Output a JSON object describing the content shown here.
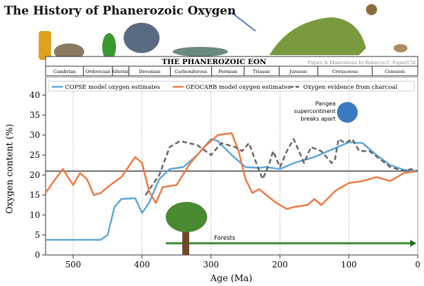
{
  "title": "The History of Phanerozoic Oxygen",
  "eon_label": "THE PHANEROZOIC EON",
  "credit": "Figure & Illustrations by Rebecca C. Payne/CSI",
  "periods": [
    {
      "name": "Cambrian",
      "start": 541,
      "end": 485
    },
    {
      "name": "Ordovician",
      "start": 485,
      "end": 443
    },
    {
      "name": "Silurian",
      "start": 443,
      "end": 419
    },
    {
      "name": "Devonian",
      "start": 419,
      "end": 359
    },
    {
      "name": "Carboniferous",
      "start": 359,
      "end": 299
    },
    {
      "name": "Permian",
      "start": 299,
      "end": 252
    },
    {
      "name": "Triassic",
      "start": 252,
      "end": 201
    },
    {
      "name": "Jurassic",
      "start": 201,
      "end": 145
    },
    {
      "name": "Cretaceous",
      "start": 145,
      "end": 66
    },
    {
      "name": "Cenozoic",
      "start": 66,
      "end": 0
    }
  ],
  "annotations": {
    "pangea": [
      "Pangea",
      "supercontinent",
      "breaks apart"
    ],
    "forests": "Forests"
  },
  "chart_data": {
    "type": "line",
    "xlabel": "Age (Ma)",
    "ylabel": "Oxygen content (%)",
    "xlim": [
      540,
      0
    ],
    "ylim": [
      0,
      40
    ],
    "xticks": [
      500,
      400,
      300,
      200,
      100,
      0
    ],
    "yticks": [
      0,
      5,
      10,
      15,
      20,
      25,
      30,
      35,
      40
    ],
    "reference_line": 21,
    "grid": "vertical dotted at 100 Ma intervals",
    "legend": "top",
    "series": [
      {
        "name": "COPSE model oxygen estimates",
        "color": "#5aa7da",
        "style": "solid",
        "x": [
          540,
          460,
          450,
          440,
          430,
          410,
          400,
          390,
          375,
          360,
          340,
          320,
          300,
          290,
          270,
          250,
          230,
          220,
          200,
          180,
          150,
          130,
          100,
          80,
          60,
          40,
          20,
          0
        ],
        "y": [
          3.8,
          3.8,
          5,
          12,
          14,
          14.2,
          10.5,
          13,
          19,
          21.5,
          22,
          25,
          29,
          28.5,
          25,
          22,
          21.8,
          22,
          21.5,
          23,
          24.5,
          26,
          28.2,
          28,
          25,
          22.5,
          21.3,
          21
        ]
      },
      {
        "name": "GEOCARB model oxygen estimates",
        "color": "#f07840",
        "style": "solid",
        "x": [
          540,
          530,
          515,
          500,
          490,
          480,
          470,
          460,
          450,
          430,
          410,
          400,
          390,
          380,
          370,
          350,
          330,
          310,
          290,
          270,
          260,
          250,
          240,
          230,
          220,
          205,
          190,
          180,
          160,
          150,
          140,
          120,
          100,
          80,
          60,
          40,
          20,
          0
        ],
        "y": [
          15.5,
          18,
          21.5,
          17.5,
          20.5,
          19,
          15,
          15.5,
          17,
          19.5,
          24.5,
          23,
          16,
          13,
          17,
          17.5,
          23,
          27,
          30,
          30.5,
          26,
          19,
          15.5,
          16.5,
          15,
          13,
          11.5,
          12,
          12.5,
          14,
          12.5,
          16,
          18,
          18.5,
          19.5,
          18.5,
          20.5,
          21
        ]
      },
      {
        "name": "Oxygen evidence from charcoal",
        "color": "#666666",
        "style": "dashed",
        "x": [
          395,
          375,
          360,
          345,
          320,
          300,
          285,
          265,
          255,
          245,
          230,
          225,
          215,
          210,
          200,
          190,
          180,
          165,
          155,
          140,
          130,
          125,
          120,
          115,
          105,
          95,
          85,
          70,
          55,
          40,
          20,
          10,
          0
        ],
        "y": [
          15,
          20,
          27,
          28.5,
          27.5,
          25,
          28,
          27,
          26,
          28,
          21,
          19,
          23,
          26,
          22,
          26,
          29,
          23,
          27,
          26,
          24,
          23,
          24,
          29,
          28,
          29,
          26,
          26,
          24,
          22,
          21,
          21.5,
          21
        ]
      }
    ]
  }
}
